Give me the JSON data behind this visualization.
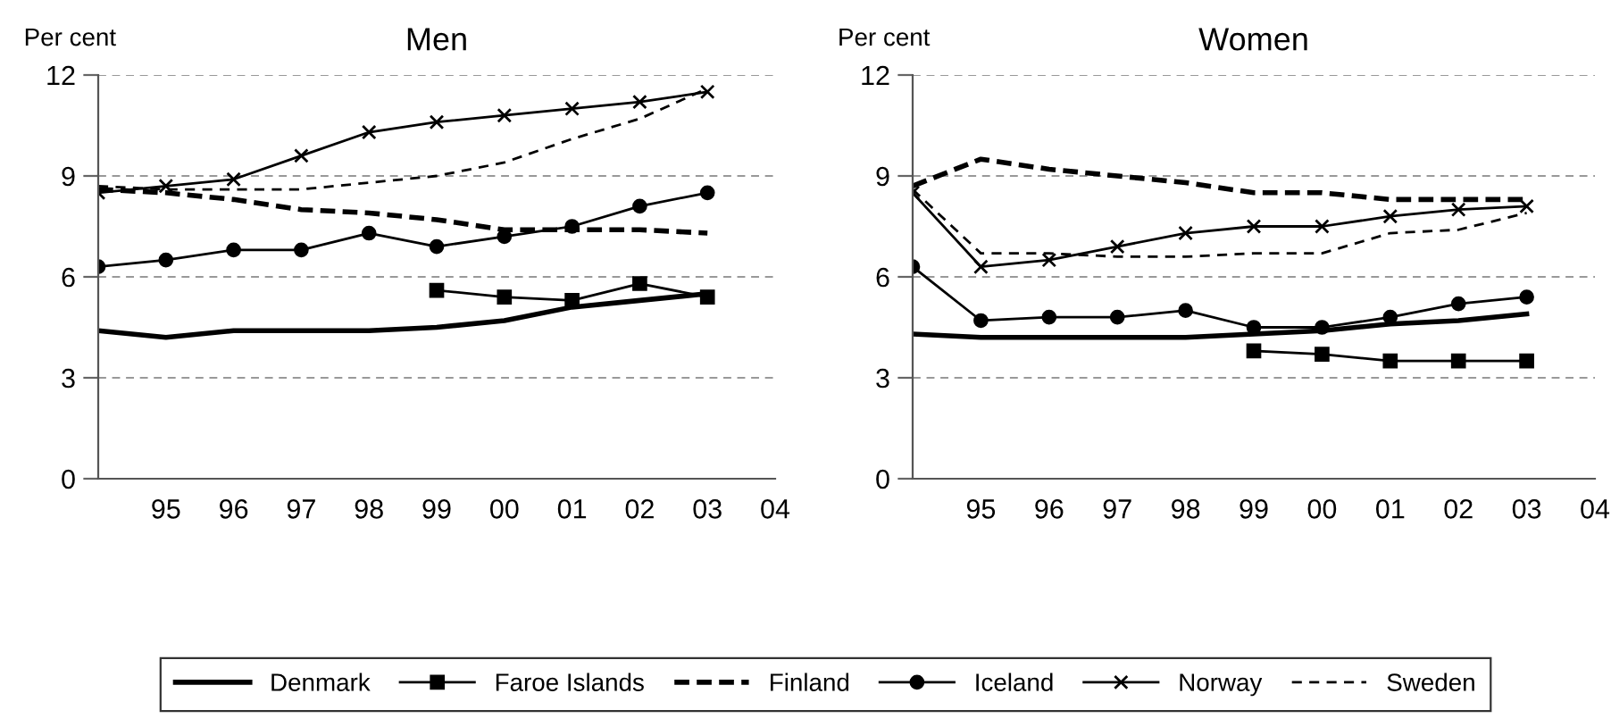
{
  "chart_data": [
    {
      "type": "line",
      "title": "Men",
      "ylabel": "Per cent",
      "x": [
        1994,
        1995,
        1996,
        1997,
        1998,
        1999,
        2000,
        2001,
        2002,
        2003
      ],
      "xlim": [
        1994,
        2004
      ],
      "xticks": [
        {
          "value": 1995,
          "label": "95"
        },
        {
          "value": 1996,
          "label": "96"
        },
        {
          "value": 1997,
          "label": "97"
        },
        {
          "value": 1998,
          "label": "98"
        },
        {
          "value": 1999,
          "label": "99"
        },
        {
          "value": 2000,
          "label": "00"
        },
        {
          "value": 2001,
          "label": "01"
        },
        {
          "value": 2002,
          "label": "02"
        },
        {
          "value": 2003,
          "label": "03"
        },
        {
          "value": 2004,
          "label": "04"
        }
      ],
      "ylim": [
        0,
        12
      ],
      "yticks": [
        0,
        3,
        6,
        9,
        12
      ],
      "grid": "y",
      "legend": "bottom",
      "series": [
        {
          "name": "Denmark",
          "color": "#000000",
          "line_style": "solid",
          "marker": "none",
          "values": [
            4.4,
            4.2,
            4.4,
            4.4,
            4.4,
            4.5,
            4.7,
            5.1,
            5.3,
            5.5
          ]
        },
        {
          "name": "Faroe Islands",
          "color": "#000000",
          "line_style": "solid",
          "marker": "square",
          "values": [
            null,
            null,
            null,
            null,
            null,
            5.6,
            5.4,
            5.3,
            5.8,
            5.4
          ]
        },
        {
          "name": "Finland",
          "color": "#000000",
          "line_style": "dashed",
          "marker": "none",
          "values": [
            8.6,
            8.5,
            8.3,
            8.0,
            7.9,
            7.7,
            7.4,
            7.4,
            7.4,
            7.3
          ]
        },
        {
          "name": "Iceland",
          "color": "#000000",
          "line_style": "solid",
          "marker": "circle",
          "values": [
            6.3,
            6.5,
            6.8,
            6.8,
            7.3,
            6.9,
            7.2,
            7.5,
            8.1,
            8.5
          ]
        },
        {
          "name": "Norway",
          "color": "#000000",
          "line_style": "solid",
          "marker": "cross",
          "values": [
            8.5,
            8.7,
            8.9,
            9.6,
            10.3,
            10.6,
            10.8,
            11.0,
            11.2,
            11.5
          ]
        },
        {
          "name": "Sweden",
          "color": "#000000",
          "line_style": "dashed",
          "marker": "none",
          "values": [
            8.7,
            8.6,
            8.6,
            8.6,
            8.8,
            9.0,
            9.4,
            10.1,
            10.7,
            11.6
          ]
        }
      ]
    },
    {
      "type": "line",
      "title": "Women",
      "ylabel": "Per cent",
      "x": [
        1994,
        1995,
        1996,
        1997,
        1998,
        1999,
        2000,
        2001,
        2002,
        2003
      ],
      "xlim": [
        1994,
        2004
      ],
      "xticks": [
        {
          "value": 1995,
          "label": "95"
        },
        {
          "value": 1996,
          "label": "96"
        },
        {
          "value": 1997,
          "label": "97"
        },
        {
          "value": 1998,
          "label": "98"
        },
        {
          "value": 1999,
          "label": "99"
        },
        {
          "value": 2000,
          "label": "00"
        },
        {
          "value": 2001,
          "label": "01"
        },
        {
          "value": 2002,
          "label": "02"
        },
        {
          "value": 2003,
          "label": "03"
        },
        {
          "value": 2004,
          "label": "04"
        }
      ],
      "ylim": [
        0,
        12
      ],
      "yticks": [
        0,
        3,
        6,
        9,
        12
      ],
      "grid": "y",
      "series": [
        {
          "color": "#000000",
          "line_style": "solid",
          "marker": "none",
          "values": [
            4.3,
            4.2,
            4.2,
            4.2,
            4.2,
            4.3,
            4.4,
            4.6,
            4.7,
            4.9
          ]
        },
        {
          "color": "#000000",
          "line_style": "solid",
          "marker": "square",
          "values": [
            null,
            null,
            null,
            null,
            null,
            3.8,
            3.7,
            3.5,
            3.5,
            3.5
          ]
        },
        {
          "color": "#000000",
          "line_style": "dashed",
          "marker": "none",
          "values": [
            8.7,
            9.5,
            9.2,
            9.0,
            8.8,
            8.5,
            8.5,
            8.3,
            8.3,
            8.3
          ]
        },
        {
          "color": "#000000",
          "line_style": "solid",
          "marker": "circle",
          "values": [
            6.3,
            4.7,
            4.8,
            4.8,
            5.0,
            4.5,
            4.5,
            4.8,
            5.2,
            5.4
          ]
        },
        {
          "color": "#000000",
          "line_style": "solid",
          "marker": "cross",
          "values": [
            8.5,
            6.3,
            6.5,
            6.9,
            7.3,
            7.5,
            7.5,
            7.8,
            8.0,
            8.1
          ]
        },
        {
          "color": "#000000",
          "line_style": "dashed",
          "marker": "none",
          "values": [
            8.6,
            6.7,
            6.7,
            6.6,
            6.6,
            6.7,
            6.7,
            7.3,
            7.4,
            7.9
          ]
        }
      ]
    }
  ]
}
